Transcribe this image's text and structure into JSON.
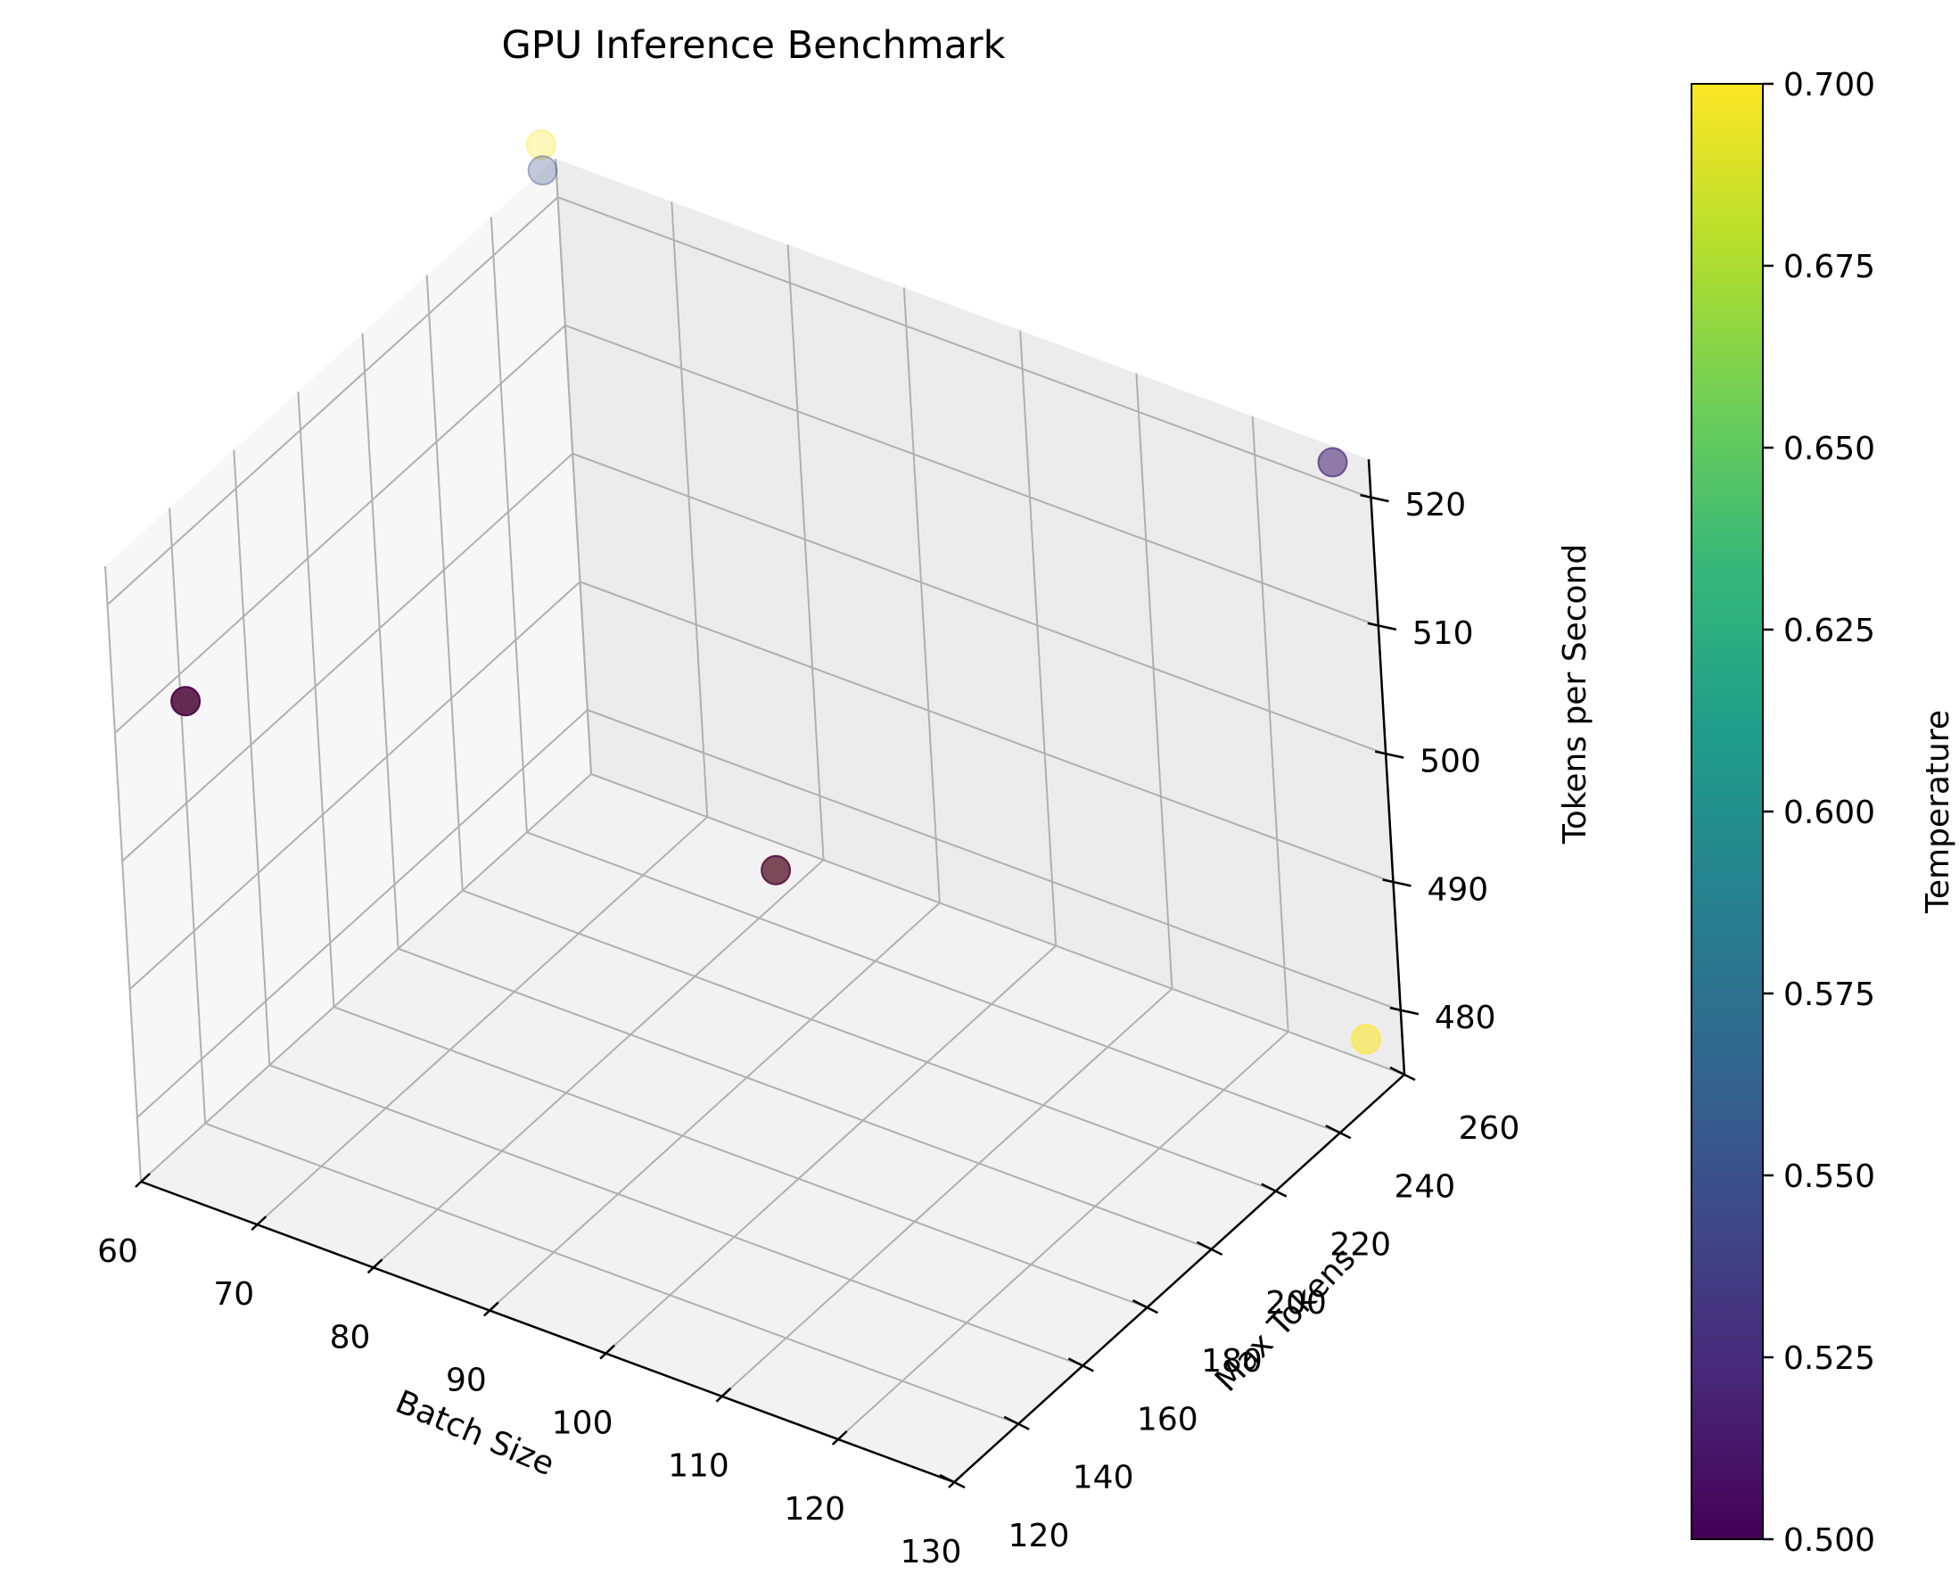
{
  "chart_data": {
    "type": "scatter",
    "projection": "3d",
    "title": "GPU Inference Benchmark",
    "xlabel": "Batch Size",
    "ylabel": "Max Tokens",
    "zlabel": "Tokens per Second",
    "xlim": [
      60,
      130
    ],
    "ylim": [
      120,
      260
    ],
    "zlim": [
      475,
      523
    ],
    "xticks": [
      "60",
      "70",
      "80",
      "90",
      "100",
      "110",
      "120",
      "130"
    ],
    "yticks": [
      "120",
      "140",
      "160",
      "180",
      "200",
      "220",
      "240",
      "260"
    ],
    "zticks": [
      "480",
      "490",
      "500",
      "510",
      "520"
    ],
    "grid": true,
    "points": [
      {
        "x": 64,
        "y": 128,
        "z": 512,
        "c": 0.7
      },
      {
        "x": 64,
        "y": 128,
        "z": 512,
        "c": 0.5
      },
      {
        "x": 96,
        "y": 192,
        "z": 495,
        "c": 0.7
      },
      {
        "x": 96,
        "y": 192,
        "z": 495,
        "c": 0.5
      },
      {
        "x": 128,
        "y": 256,
        "z": 478,
        "c": 0.7
      },
      {
        "x": 128,
        "y": 256,
        "z": 523,
        "c": 0.52
      },
      {
        "x": 60,
        "y": 256,
        "z": 525,
        "c": 0.7
      },
      {
        "x": 60,
        "y": 256,
        "z": 523,
        "c": 0.55
      }
    ],
    "colorbar": {
      "label": "Temperature",
      "range": [
        0.5,
        0.7
      ],
      "ticks": [
        "0.500",
        "0.525",
        "0.550",
        "0.575",
        "0.600",
        "0.625",
        "0.650",
        "0.675",
        "0.700"
      ],
      "colormap": [
        "#440154",
        "#482878",
        "#3e4989",
        "#31688e",
        "#26828e",
        "#1f9e89",
        "#35b779",
        "#6ece58",
        "#b5de2b",
        "#fde725"
      ]
    }
  }
}
